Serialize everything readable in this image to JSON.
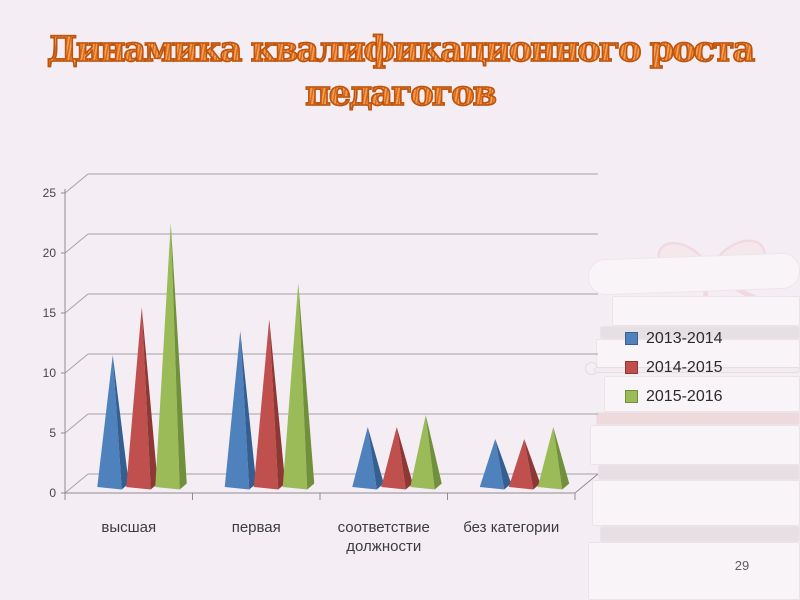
{
  "slide": {
    "background_color": "#f4eef4",
    "title": {
      "line1": "Динамика квалификационного роста",
      "line2": "педагогов",
      "color": "#e2741e",
      "outline_color": "#bc5410"
    },
    "page_number": "29"
  },
  "chart_data": {
    "type": "bar",
    "bar_shape": "3d-pyramid",
    "title": "",
    "xlabel": "",
    "ylabel": "",
    "categories": [
      "высшая",
      "первая",
      "соответствие должности",
      "без категории"
    ],
    "series": [
      {
        "name": "2013-2014",
        "color": "#4f81bd",
        "side_color": "#365f91",
        "border_color": "#3a5f8f",
        "values": [
          11,
          13,
          5,
          4
        ]
      },
      {
        "name": "2014-2015",
        "color": "#c0504d",
        "side_color": "#8e3836",
        "border_color": "#8e3836",
        "values": [
          15,
          14,
          5,
          4
        ]
      },
      {
        "name": "2015-2016",
        "color": "#9bbb59",
        "side_color": "#70903c",
        "border_color": "#70903c",
        "values": [
          22,
          17,
          6,
          5
        ]
      }
    ],
    "ylim": [
      0,
      25
    ],
    "ytick_step": 5,
    "yticks": [
      "0",
      "5",
      "10",
      "15",
      "20",
      "25"
    ],
    "grid": true,
    "legend_position": "right-middle"
  },
  "decor": {
    "books_image": "faint stack of books with diploma scroll and ribbon bow",
    "ribbon_color": "#edaab5"
  }
}
